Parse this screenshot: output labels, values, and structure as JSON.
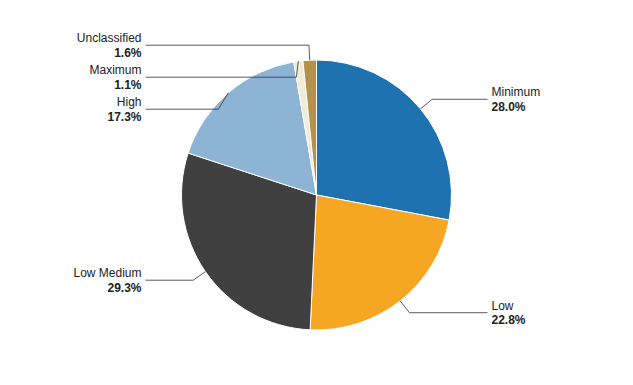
{
  "chart_data": {
    "type": "pie",
    "categories": [
      "Minimum",
      "Low",
      "Low Medium",
      "High",
      "Maximum",
      "Unclassified"
    ],
    "values": [
      28.0,
      22.8,
      29.3,
      17.3,
      1.1,
      1.6
    ],
    "value_labels": [
      "28.0%",
      "22.8%",
      "29.3%",
      "17.3%",
      "1.1%",
      "1.6%"
    ],
    "colors": [
      "#1F72B0",
      "#F5A623",
      "#404040",
      "#8DB4D4",
      "#F0ECD8",
      "#B5924C"
    ],
    "data_labels": true
  }
}
